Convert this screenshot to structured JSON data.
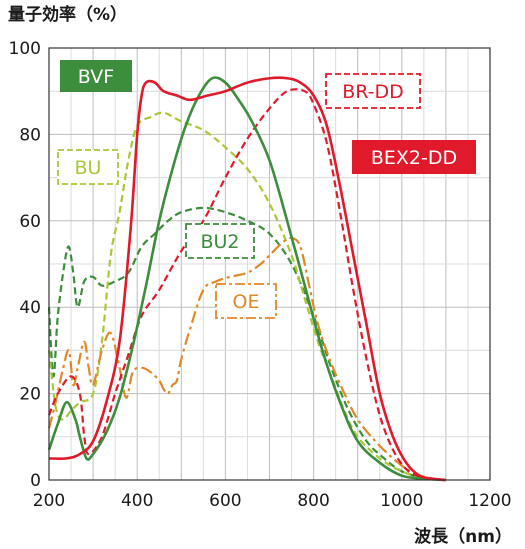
{
  "chart_data": {
    "type": "line",
    "title": "",
    "ylabel": "量子効率（%）",
    "xlabel": "波長（nm）",
    "xlim": [
      200,
      1200
    ],
    "ylim": [
      0,
      100
    ],
    "xticks": [
      200,
      400,
      600,
      800,
      1000,
      1200
    ],
    "yticks": [
      0,
      20,
      40,
      60,
      80,
      100
    ],
    "grid": true,
    "series": [
      {
        "name": "BVF",
        "color": "#3c8d3c",
        "style": "solid",
        "points": [
          [
            200,
            7
          ],
          [
            220,
            13
          ],
          [
            240,
            18
          ],
          [
            260,
            14
          ],
          [
            270,
            10
          ],
          [
            285,
            5
          ],
          [
            300,
            6
          ],
          [
            330,
            11
          ],
          [
            360,
            19
          ],
          [
            390,
            31
          ],
          [
            420,
            45
          ],
          [
            450,
            60
          ],
          [
            480,
            72
          ],
          [
            510,
            82
          ],
          [
            540,
            89
          ],
          [
            570,
            93
          ],
          [
            600,
            92
          ],
          [
            630,
            88
          ],
          [
            660,
            83
          ],
          [
            700,
            74
          ],
          [
            740,
            60
          ],
          [
            780,
            45
          ],
          [
            820,
            30
          ],
          [
            860,
            18
          ],
          [
            900,
            9
          ],
          [
            950,
            4
          ],
          [
            1000,
            1
          ],
          [
            1050,
            0.3
          ],
          [
            1100,
            0
          ]
        ]
      },
      {
        "name": "BEX2-DD",
        "color": "#e0192b",
        "style": "solid",
        "points": [
          [
            200,
            5
          ],
          [
            240,
            5
          ],
          [
            270,
            6
          ],
          [
            300,
            9
          ],
          [
            330,
            18
          ],
          [
            360,
            32
          ],
          [
            385,
            58
          ],
          [
            400,
            80
          ],
          [
            410,
            89
          ],
          [
            420,
            92
          ],
          [
            440,
            92
          ],
          [
            460,
            90
          ],
          [
            490,
            89
          ],
          [
            520,
            88
          ],
          [
            560,
            89
          ],
          [
            600,
            90
          ],
          [
            650,
            92
          ],
          [
            700,
            93
          ],
          [
            740,
            93
          ],
          [
            770,
            92
          ],
          [
            800,
            89
          ],
          [
            830,
            82
          ],
          [
            860,
            68
          ],
          [
            890,
            52
          ],
          [
            920,
            36
          ],
          [
            950,
            20
          ],
          [
            980,
            10
          ],
          [
            1010,
            4
          ],
          [
            1040,
            1
          ],
          [
            1070,
            0.3
          ],
          [
            1100,
            0
          ]
        ]
      },
      {
        "name": "BR-DD",
        "color": "#e0192b",
        "style": "dash",
        "points": [
          [
            200,
            15
          ],
          [
            220,
            20
          ],
          [
            250,
            24
          ],
          [
            270,
            20
          ],
          [
            280,
            10
          ],
          [
            290,
            6
          ],
          [
            320,
            10
          ],
          [
            350,
            20
          ],
          [
            380,
            29
          ],
          [
            410,
            38
          ],
          [
            450,
            44
          ],
          [
            500,
            53
          ],
          [
            550,
            60
          ],
          [
            600,
            70
          ],
          [
            650,
            79
          ],
          [
            700,
            86
          ],
          [
            740,
            90
          ],
          [
            780,
            90
          ],
          [
            800,
            87
          ],
          [
            830,
            78
          ],
          [
            860,
            62
          ],
          [
            890,
            44
          ],
          [
            920,
            28
          ],
          [
            950,
            15
          ],
          [
            980,
            7
          ],
          [
            1010,
            2.5
          ],
          [
            1040,
            0.8
          ],
          [
            1070,
            0.2
          ],
          [
            1100,
            0
          ]
        ]
      },
      {
        "name": "BU",
        "color": "#a8c837",
        "style": "dash",
        "points": [
          [
            200,
            30
          ],
          [
            215,
            17
          ],
          [
            230,
            14
          ],
          [
            250,
            16
          ],
          [
            270,
            18
          ],
          [
            300,
            20
          ],
          [
            320,
            32
          ],
          [
            340,
            52
          ],
          [
            360,
            62
          ],
          [
            380,
            74
          ],
          [
            400,
            82
          ],
          [
            430,
            84
          ],
          [
            460,
            85
          ],
          [
            500,
            83
          ],
          [
            550,
            81
          ],
          [
            600,
            77
          ],
          [
            650,
            72
          ],
          [
            700,
            64
          ],
          [
            750,
            52
          ],
          [
            780,
            42
          ],
          [
            810,
            32
          ],
          [
            840,
            24
          ],
          [
            870,
            16
          ],
          [
            900,
            10
          ],
          [
            950,
            5
          ],
          [
            1000,
            2
          ],
          [
            1050,
            0.5
          ],
          [
            1100,
            0
          ]
        ]
      },
      {
        "name": "BU2",
        "color": "#3c8d3c",
        "style": "dash",
        "points": [
          [
            200,
            40
          ],
          [
            210,
            24
          ],
          [
            220,
            38
          ],
          [
            235,
            50
          ],
          [
            245,
            54
          ],
          [
            255,
            48
          ],
          [
            265,
            40
          ],
          [
            280,
            46
          ],
          [
            300,
            47
          ],
          [
            320,
            45
          ],
          [
            350,
            46
          ],
          [
            380,
            48
          ],
          [
            410,
            54
          ],
          [
            440,
            57
          ],
          [
            470,
            60
          ],
          [
            500,
            62
          ],
          [
            550,
            63
          ],
          [
            600,
            62
          ],
          [
            650,
            60
          ],
          [
            700,
            57
          ],
          [
            750,
            50
          ],
          [
            800,
            38
          ],
          [
            840,
            26
          ],
          [
            880,
            16
          ],
          [
            920,
            9
          ],
          [
            960,
            5
          ],
          [
            1000,
            2
          ],
          [
            1050,
            0.5
          ],
          [
            1100,
            0
          ]
        ]
      },
      {
        "name": "OE",
        "color": "#e0882a",
        "style": "dashdot",
        "points": [
          [
            200,
            12
          ],
          [
            215,
            18
          ],
          [
            230,
            25
          ],
          [
            245,
            30
          ],
          [
            255,
            22
          ],
          [
            265,
            26
          ],
          [
            280,
            32
          ],
          [
            290,
            26
          ],
          [
            300,
            22
          ],
          [
            320,
            30
          ],
          [
            340,
            34
          ],
          [
            360,
            26
          ],
          [
            375,
            19
          ],
          [
            390,
            25
          ],
          [
            410,
            26
          ],
          [
            430,
            25
          ],
          [
            450,
            23
          ],
          [
            460,
            21
          ],
          [
            470,
            20
          ],
          [
            480,
            22
          ],
          [
            490,
            23
          ],
          [
            500,
            28
          ],
          [
            520,
            35
          ],
          [
            550,
            44
          ],
          [
            580,
            46
          ],
          [
            610,
            47
          ],
          [
            650,
            48
          ],
          [
            680,
            50
          ],
          [
            700,
            52
          ],
          [
            730,
            55
          ],
          [
            750,
            56
          ],
          [
            770,
            54
          ],
          [
            790,
            45
          ],
          [
            810,
            36
          ],
          [
            840,
            27
          ],
          [
            870,
            20
          ],
          [
            900,
            14
          ],
          [
            940,
            9
          ],
          [
            980,
            5
          ],
          [
            1020,
            2
          ],
          [
            1060,
            0.5
          ],
          [
            1100,
            0
          ]
        ]
      }
    ],
    "legend": [
      {
        "label": "BVF",
        "series": "BVF",
        "boxed": "filled"
      },
      {
        "label": "BR-DD",
        "series": "BR-DD",
        "boxed": "dashed"
      },
      {
        "label": "BEX2-DD",
        "series": "BEX2-DD",
        "boxed": "filled"
      },
      {
        "label": "BU",
        "series": "BU",
        "boxed": "dashed"
      },
      {
        "label": "BU2",
        "series": "BU2",
        "boxed": "dashed"
      },
      {
        "label": "OE",
        "series": "OE",
        "boxed": "dashdot"
      }
    ]
  }
}
